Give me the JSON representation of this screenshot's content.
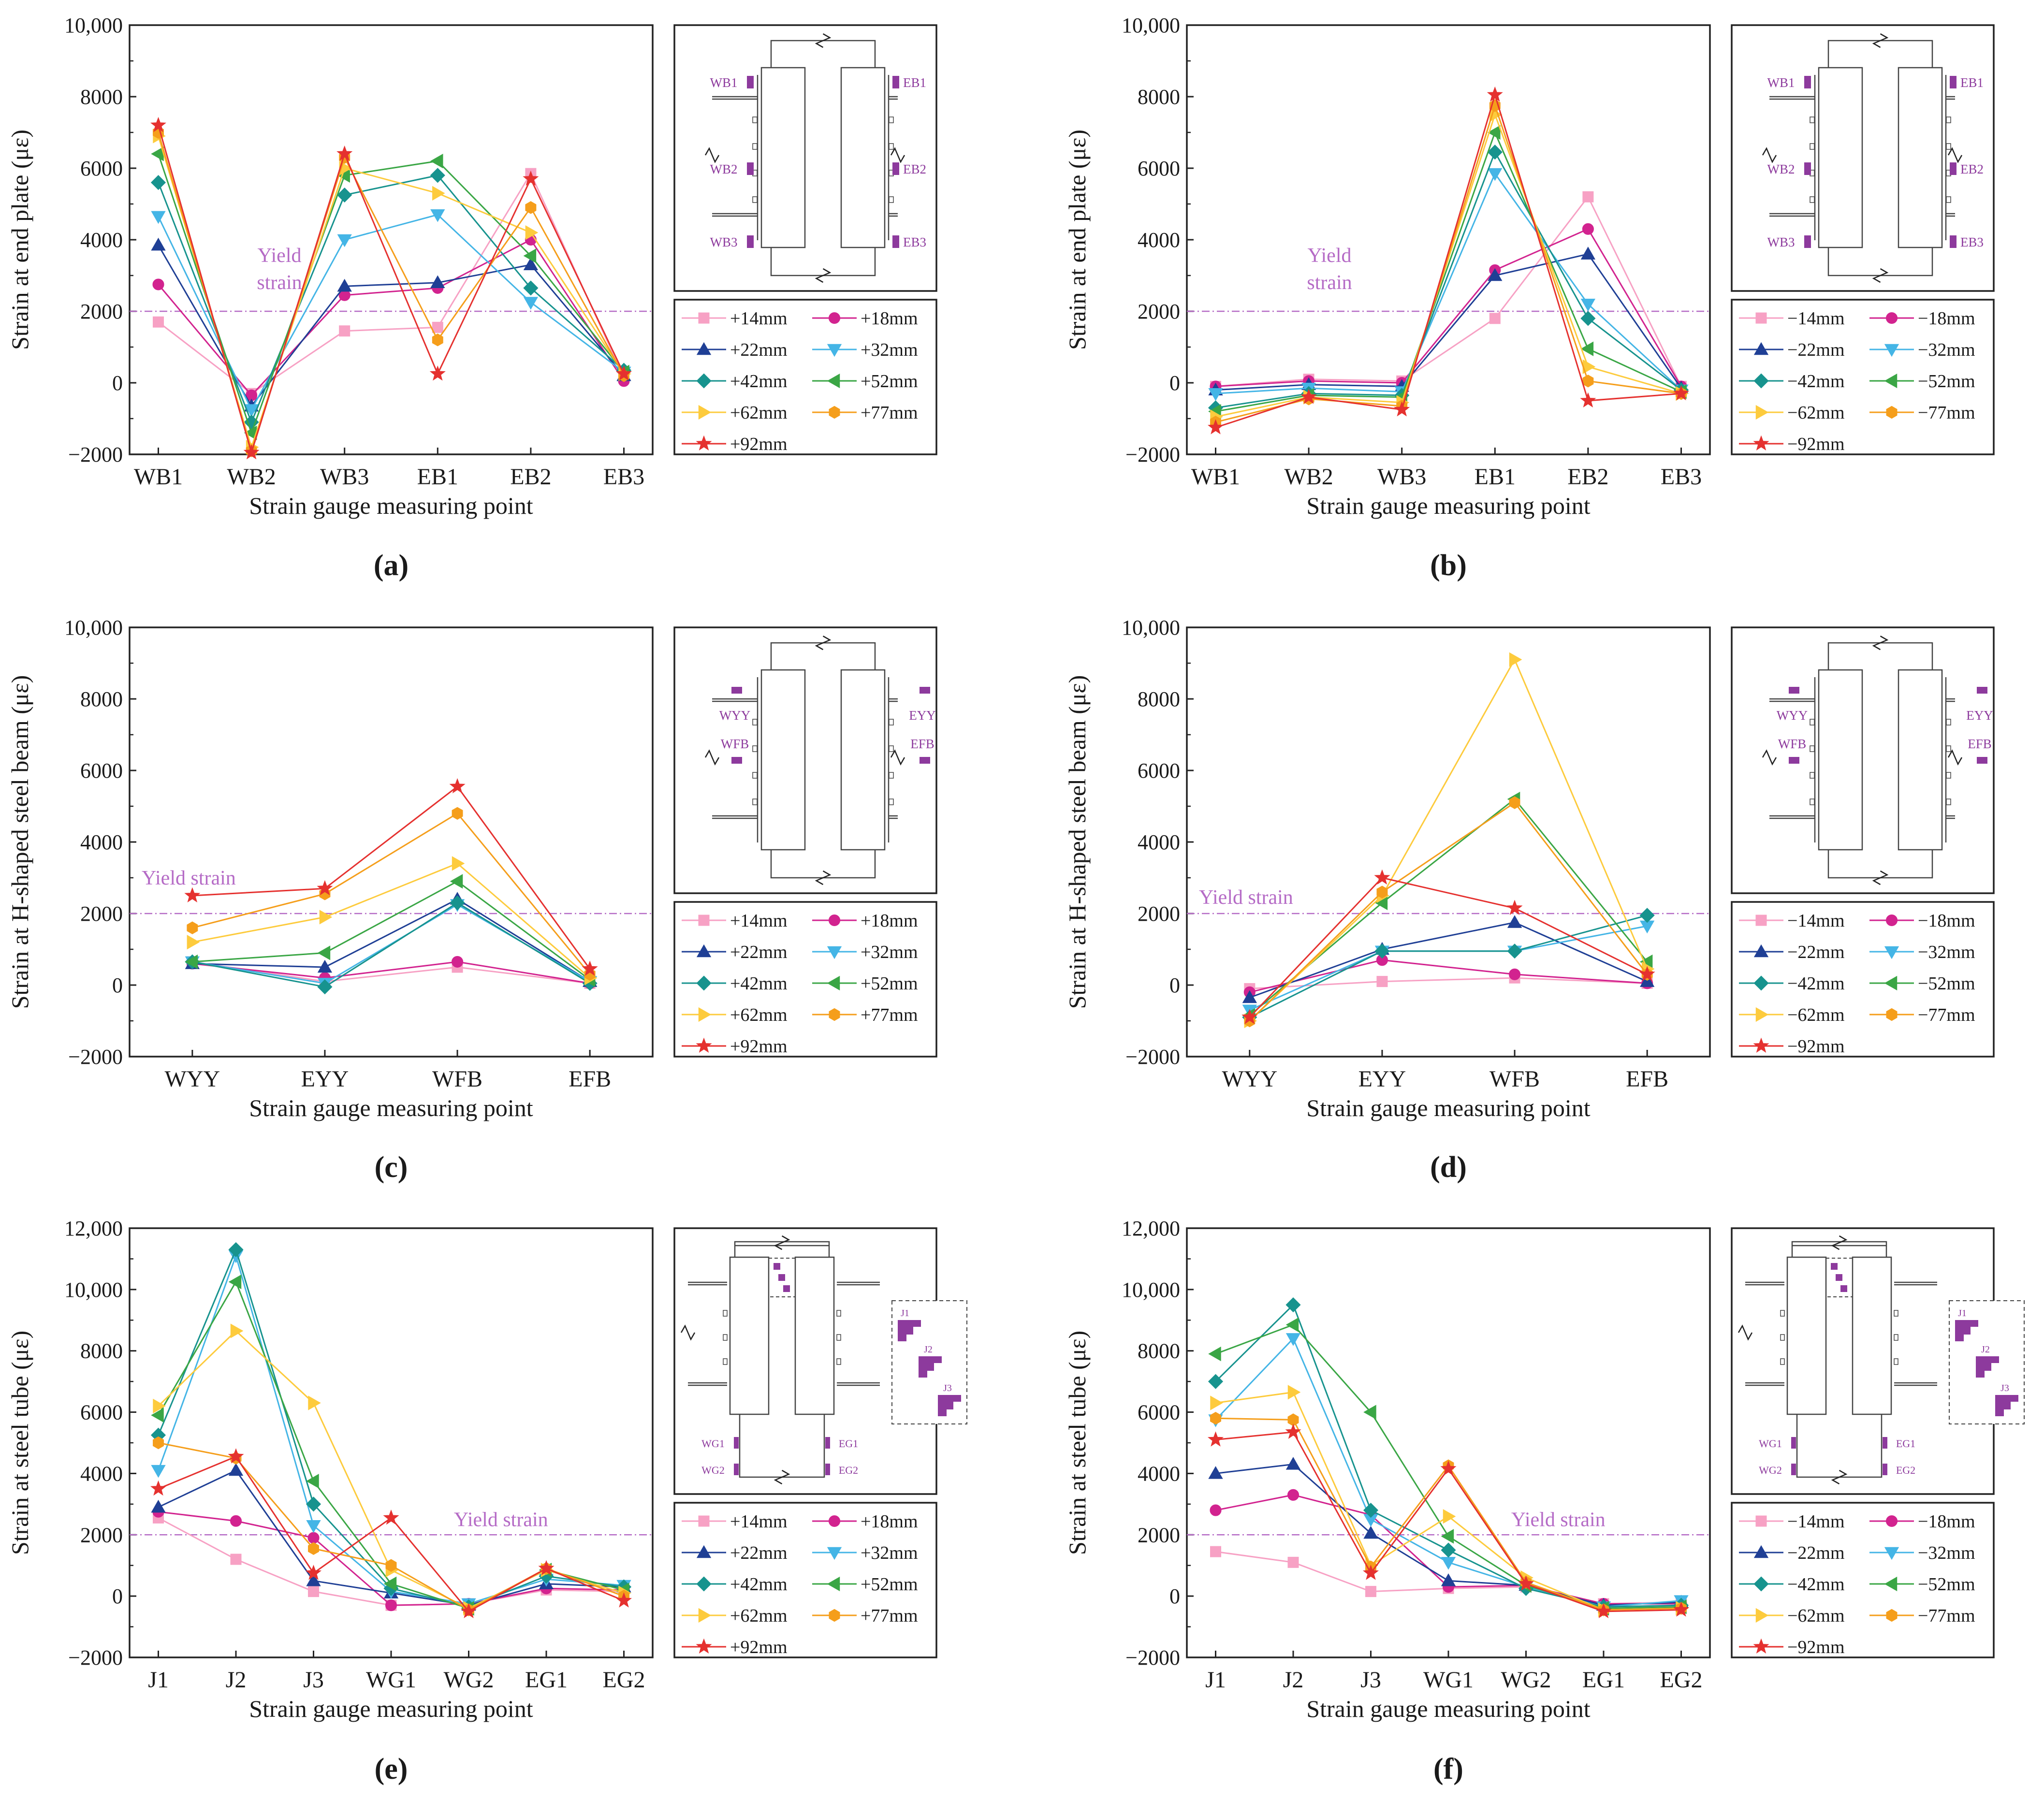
{
  "legend_pos": {
    "entries": [
      "+14mm",
      "+18mm",
      "+22mm",
      "+32mm",
      "+42mm",
      "+52mm",
      "+62mm",
      "+77mm",
      "+92mm"
    ]
  },
  "legend_neg": {
    "entries": [
      "−14mm",
      "−18mm",
      "−22mm",
      "−32mm",
      "−42mm",
      "−52mm",
      "−62mm",
      "−77mm",
      "−92mm"
    ]
  },
  "series_style": [
    {
      "color": "#f7a1c4",
      "marker": "square"
    },
    {
      "color": "#d2238f",
      "marker": "circle"
    },
    {
      "color": "#1f3f95",
      "marker": "triangle-up"
    },
    {
      "color": "#44b5e6",
      "marker": "triangle-down"
    },
    {
      "color": "#17938e",
      "marker": "diamond"
    },
    {
      "color": "#3aa645",
      "marker": "triangle-left"
    },
    {
      "color": "#fdcb3d",
      "marker": "triangle-right"
    },
    {
      "color": "#f59e1b",
      "marker": "hexagon"
    },
    {
      "color": "#e5312f",
      "marker": "star"
    }
  ],
  "yield_line_color": "#b56bc6",
  "gauge_color": "#8d3a9d",
  "chart_data": [
    {
      "panel": "a",
      "caption": "(a)",
      "type": "line",
      "ylabel": "Strain at end plate (με)",
      "xlabel": "Strain gauge measuring point",
      "categories": [
        "WB1",
        "WB2",
        "WB3",
        "EB1",
        "EB2",
        "EB3"
      ],
      "ylim": [
        -2000,
        10000
      ],
      "yticks": [
        -2000,
        0,
        2000,
        4000,
        6000,
        8000,
        10000
      ],
      "ytick_labels": [
        "−2000",
        "0",
        "2000",
        "4000",
        "6000",
        "8000",
        "10,000"
      ],
      "yield_strain": 2000,
      "yield_label": [
        "Yield",
        "strain"
      ],
      "legend": "pos",
      "diagram": {
        "type": "end-plate",
        "labels": [
          "WB1",
          "WB2",
          "WB3",
          "EB1",
          "EB2",
          "EB3"
        ]
      },
      "series": [
        {
          "name": "+14mm",
          "values": [
            1700,
            -300,
            1450,
            1550,
            5850,
            150
          ]
        },
        {
          "name": "+18mm",
          "values": [
            2750,
            -350,
            2450,
            2650,
            4000,
            50
          ]
        },
        {
          "name": "+22mm",
          "values": [
            3850,
            -650,
            2700,
            2800,
            3300,
            200
          ]
        },
        {
          "name": "+32mm",
          "values": [
            4650,
            -750,
            4000,
            4700,
            2250,
            300
          ]
        },
        {
          "name": "+42mm",
          "values": [
            5600,
            -1100,
            5250,
            5800,
            2650,
            350
          ]
        },
        {
          "name": "+52mm",
          "values": [
            6400,
            -1400,
            5800,
            6200,
            3550,
            300
          ]
        },
        {
          "name": "+62mm",
          "values": [
            6900,
            -1800,
            6000,
            5300,
            4200,
            250
          ]
        },
        {
          "name": "+77mm",
          "values": [
            7000,
            -1900,
            6300,
            1200,
            4900,
            200
          ]
        },
        {
          "name": "+92mm",
          "values": [
            7200,
            -1950,
            6400,
            250,
            5700,
            250
          ]
        }
      ]
    },
    {
      "panel": "b",
      "caption": "(b)",
      "type": "line",
      "ylabel": "Strain at end plate (με)",
      "xlabel": "Strain gauge measuring point",
      "categories": [
        "WB1",
        "WB2",
        "WB3",
        "EB1",
        "EB2",
        "EB3"
      ],
      "ylim": [
        -2000,
        10000
      ],
      "yticks": [
        -2000,
        0,
        2000,
        4000,
        6000,
        8000,
        10000
      ],
      "ytick_labels": [
        "−2000",
        "0",
        "2000",
        "4000",
        "6000",
        "8000",
        "10,000"
      ],
      "yield_strain": 2000,
      "yield_label": [
        "Yield",
        "strain"
      ],
      "legend": "neg",
      "diagram": {
        "type": "end-plate",
        "labels": [
          "WB1",
          "WB2",
          "WB3",
          "EB1",
          "EB2",
          "EB3"
        ]
      },
      "series": [
        {
          "name": "−14mm",
          "values": [
            -100,
            100,
            50,
            1800,
            5200,
            -100
          ]
        },
        {
          "name": "−18mm",
          "values": [
            -100,
            50,
            0,
            3150,
            4300,
            -100
          ]
        },
        {
          "name": "−22mm",
          "values": [
            -200,
            -50,
            -100,
            3000,
            3600,
            -150
          ]
        },
        {
          "name": "−32mm",
          "values": [
            -300,
            -150,
            -250,
            5850,
            2200,
            -200
          ]
        },
        {
          "name": "−42mm",
          "values": [
            -700,
            -300,
            -350,
            6450,
            1800,
            -200
          ]
        },
        {
          "name": "−52mm",
          "values": [
            -800,
            -350,
            -400,
            7000,
            950,
            -250
          ]
        },
        {
          "name": "−62mm",
          "values": [
            -950,
            -400,
            -550,
            7500,
            450,
            -300
          ]
        },
        {
          "name": "−77mm",
          "values": [
            -1100,
            -450,
            -650,
            7750,
            50,
            -300
          ]
        },
        {
          "name": "−92mm",
          "values": [
            -1250,
            -400,
            -750,
            8050,
            -500,
            -300
          ]
        }
      ]
    },
    {
      "panel": "c",
      "caption": "(c)",
      "type": "line",
      "ylabel": "Strain at H-shaped steel beam (με)",
      "xlabel": "Strain gauge measuring point",
      "categories": [
        "WYY",
        "EYY",
        "WFB",
        "EFB"
      ],
      "ylim": [
        -2000,
        10000
      ],
      "yticks": [
        -2000,
        0,
        2000,
        4000,
        6000,
        8000,
        10000
      ],
      "ytick_labels": [
        "−2000",
        "0",
        "2000",
        "4000",
        "6000",
        "8000",
        "10,000"
      ],
      "yield_strain": 2000,
      "yield_label": [
        "Yield strain"
      ],
      "legend": "pos",
      "diagram": {
        "type": "beam",
        "labels": [
          "WYY",
          "WFB",
          "EYY",
          "EFB"
        ]
      },
      "series": [
        {
          "name": "+14mm",
          "values": [
            650,
            100,
            500,
            50
          ]
        },
        {
          "name": "+18mm",
          "values": [
            600,
            200,
            650,
            50
          ]
        },
        {
          "name": "+22mm",
          "values": [
            600,
            500,
            2400,
            100
          ]
        },
        {
          "name": "+32mm",
          "values": [
            650,
            50,
            2250,
            100
          ]
        },
        {
          "name": "+42mm",
          "values": [
            650,
            -50,
            2300,
            50
          ]
        },
        {
          "name": "+52mm",
          "values": [
            650,
            900,
            2900,
            150
          ]
        },
        {
          "name": "+62mm",
          "values": [
            1200,
            1900,
            3400,
            200
          ]
        },
        {
          "name": "+77mm",
          "values": [
            1600,
            2550,
            4800,
            300
          ]
        },
        {
          "name": "+92mm",
          "values": [
            2500,
            2700,
            5550,
            450
          ]
        }
      ]
    },
    {
      "panel": "d",
      "caption": "(d)",
      "type": "line",
      "ylabel": "Strain at H-shaped steel beam (με)",
      "xlabel": "Strain gauge measuring point",
      "categories": [
        "WYY",
        "EYY",
        "WFB",
        "EFB"
      ],
      "ylim": [
        -2000,
        10000
      ],
      "yticks": [
        -2000,
        0,
        2000,
        4000,
        6000,
        8000,
        10000
      ],
      "ytick_labels": [
        "−2000",
        "0",
        "2000",
        "4000",
        "6000",
        "8000",
        "10,000"
      ],
      "yield_strain": 2000,
      "yield_label": [
        "Yield strain"
      ],
      "legend": "neg",
      "diagram": {
        "type": "beam",
        "labels": [
          "WYY",
          "WFB",
          "EYY",
          "EFB"
        ]
      },
      "series": [
        {
          "name": "−14mm",
          "values": [
            -100,
            100,
            200,
            50
          ]
        },
        {
          "name": "−18mm",
          "values": [
            -200,
            700,
            300,
            50
          ]
        },
        {
          "name": "−22mm",
          "values": [
            -350,
            1000,
            1750,
            100
          ]
        },
        {
          "name": "−32mm",
          "values": [
            -700,
            950,
            950,
            1650
          ]
        },
        {
          "name": "−42mm",
          "values": [
            -900,
            950,
            950,
            1950
          ]
        },
        {
          "name": "−52mm",
          "values": [
            -850,
            2300,
            5200,
            650
          ]
        },
        {
          "name": "−62mm",
          "values": [
            -1000,
            2500,
            9100,
            450
          ]
        },
        {
          "name": "−77mm",
          "values": [
            -1000,
            2600,
            5100,
            300
          ]
        },
        {
          "name": "−92mm",
          "values": [
            -900,
            3000,
            2150,
            300
          ]
        }
      ]
    },
    {
      "panel": "e",
      "caption": "(e)",
      "type": "line",
      "ylabel": "Strain at steel tube (με)",
      "xlabel": "Strain gauge measuring point",
      "categories": [
        "J1",
        "J2",
        "J3",
        "WG1",
        "WG2",
        "EG1",
        "EG2"
      ],
      "ylim": [
        -2000,
        12000
      ],
      "yticks": [
        -2000,
        0,
        2000,
        4000,
        6000,
        8000,
        10000,
        12000
      ],
      "ytick_labels": [
        "−2000",
        "0",
        "2000",
        "4000",
        "6000",
        "8000",
        "10,000",
        "12,000"
      ],
      "yield_strain": 2000,
      "yield_label": [
        "Yield strain"
      ],
      "legend": "pos",
      "diagram": {
        "type": "tube",
        "labels": [
          "J1",
          "J2",
          "J3",
          "WG1",
          "WG2",
          "EG1",
          "EG2"
        ]
      },
      "series": [
        {
          "name": "+14mm",
          "values": [
            2550,
            1200,
            150,
            -300,
            -250,
            200,
            150
          ]
        },
        {
          "name": "+18mm",
          "values": [
            2750,
            2450,
            1900,
            -300,
            -250,
            250,
            200
          ]
        },
        {
          "name": "+22mm",
          "values": [
            2900,
            4100,
            500,
            100,
            -300,
            400,
            300
          ]
        },
        {
          "name": "+32mm",
          "values": [
            4100,
            11100,
            2300,
            150,
            -250,
            550,
            350
          ]
        },
        {
          "name": "+42mm",
          "values": [
            5250,
            11300,
            3000,
            250,
            -350,
            650,
            300
          ]
        },
        {
          "name": "+52mm",
          "values": [
            5900,
            10250,
            3750,
            400,
            -400,
            850,
            200
          ]
        },
        {
          "name": "+62mm",
          "values": [
            6200,
            8650,
            6300,
            850,
            -400,
            850,
            100
          ]
        },
        {
          "name": "+77mm",
          "values": [
            5000,
            4500,
            1550,
            1000,
            -450,
            900,
            0
          ]
        },
        {
          "name": "+92mm",
          "values": [
            3500,
            4550,
            750,
            2550,
            -500,
            900,
            -150
          ]
        }
      ]
    },
    {
      "panel": "f",
      "caption": "(f)",
      "type": "line",
      "ylabel": "Strain at steel tube (με)",
      "xlabel": "Strain gauge measuring point",
      "categories": [
        "J1",
        "J2",
        "J3",
        "WG1",
        "WG2",
        "EG1",
        "EG2"
      ],
      "ylim": [
        -2000,
        12000
      ],
      "yticks": [
        -2000,
        0,
        2000,
        4000,
        6000,
        8000,
        10000,
        12000
      ],
      "ytick_labels": [
        "−2000",
        "0",
        "2000",
        "4000",
        "6000",
        "8000",
        "10,000",
        "12,000"
      ],
      "yield_strain": 2000,
      "yield_label": [
        "Yield strain"
      ],
      "legend": "neg",
      "diagram": {
        "type": "tube",
        "labels": [
          "J1",
          "J2",
          "J3",
          "WG1",
          "WG2",
          "EG1",
          "EG2"
        ]
      },
      "series": [
        {
          "name": "−14mm",
          "values": [
            1450,
            1100,
            150,
            250,
            300,
            -250,
            -200
          ]
        },
        {
          "name": "−18mm",
          "values": [
            2800,
            3300,
            2650,
            300,
            350,
            -250,
            -250
          ]
        },
        {
          "name": "−22mm",
          "values": [
            4000,
            4300,
            2050,
            500,
            350,
            -300,
            -200
          ]
        },
        {
          "name": "−32mm",
          "values": [
            5750,
            8400,
            2500,
            1100,
            300,
            -350,
            -150
          ]
        },
        {
          "name": "−42mm",
          "values": [
            7000,
            9500,
            2800,
            1500,
            250,
            -350,
            -300
          ]
        },
        {
          "name": "−52mm",
          "values": [
            7900,
            8850,
            6000,
            1950,
            350,
            -400,
            -350
          ]
        },
        {
          "name": "−62mm",
          "values": [
            6300,
            6650,
            1000,
            2600,
            600,
            -450,
            -400
          ]
        },
        {
          "name": "−77mm",
          "values": [
            5800,
            5750,
            950,
            4250,
            450,
            -450,
            -400
          ]
        },
        {
          "name": "−92mm",
          "values": [
            5100,
            5350,
            750,
            4150,
            400,
            -500,
            -450
          ]
        }
      ]
    }
  ]
}
